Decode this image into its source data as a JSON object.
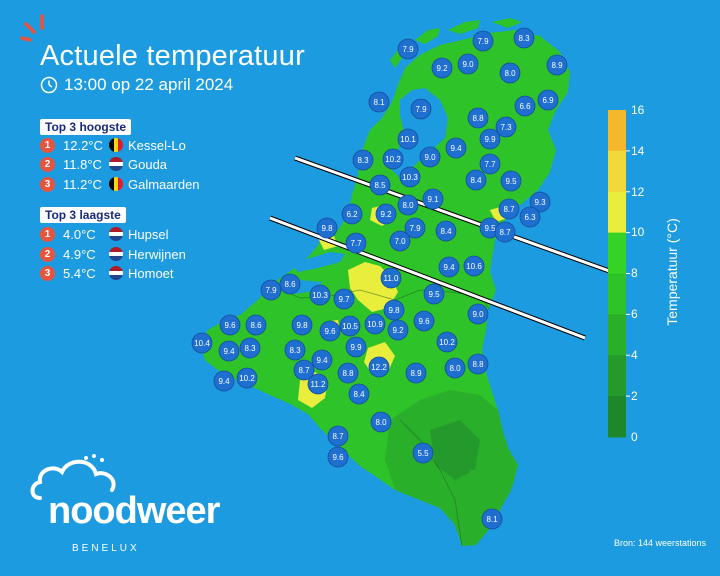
{
  "header": {
    "title": "Actuele temperatuur",
    "datetime": "13:00 op 22 april 2024"
  },
  "top_highest": {
    "heading": "Top 3 hoogste",
    "items": [
      {
        "rank": "1",
        "temp": "12.2°C",
        "country": "BE",
        "place": "Kessel-Lo"
      },
      {
        "rank": "2",
        "temp": "11.8°C",
        "country": "NL",
        "place": "Gouda"
      },
      {
        "rank": "3",
        "temp": "11.2°C",
        "country": "BE",
        "place": "Galmaarden"
      }
    ]
  },
  "top_lowest": {
    "heading": "Top 3 laagste",
    "items": [
      {
        "rank": "1",
        "temp": "4.0°C",
        "country": "NL",
        "place": "Hupsel"
      },
      {
        "rank": "2",
        "temp": "4.9°C",
        "country": "NL",
        "place": "Herwijnen"
      },
      {
        "rank": "3",
        "temp": "5.4°C",
        "country": "NL",
        "place": "Homoet"
      }
    ]
  },
  "legend": {
    "title": "Temperatuur (°C)",
    "ticks": [
      "16",
      "14",
      "12",
      "10",
      "8",
      "6",
      "4",
      "2",
      "0"
    ],
    "colors": [
      "#f4b82c",
      "#f1d93a",
      "#e9ee3d",
      "#34d326",
      "#2fc32a",
      "#2aaf2b",
      "#249a2c",
      "#1f872b"
    ]
  },
  "stations": [
    "7.9",
    "7.9",
    "8.3",
    "9.2",
    "9.0",
    "8.0",
    "8.9",
    "8.1",
    "6.6",
    "6.9",
    "7.9",
    "10.1",
    "8.8",
    "7.3",
    "9.9",
    "8.3",
    "10.2",
    "9.0",
    "9.4",
    "7.7",
    "10.3",
    "8.4",
    "9.5",
    "8.5",
    "9.1",
    "8.0",
    "9.3",
    "8.7",
    "6.3",
    "6.2",
    "9.2",
    "9.8",
    "7.9",
    "8.4",
    "9.5",
    "8.7",
    "7.0",
    "9.4",
    "10.6",
    "7.7",
    "11.0",
    "7.9",
    "9.5",
    "8.6",
    "10.3",
    "9.7",
    "9.8",
    "9.0",
    "9.6",
    "8.6",
    "9.8",
    "9.6",
    "10.5",
    "10.9",
    "9.2",
    "9.6",
    "10.4",
    "9.4",
    "8.3",
    "8.3",
    "9.9",
    "10.2",
    "9.4",
    "8.7",
    "8.8",
    "12.2",
    "8.9",
    "8.0",
    "8.8",
    "9.4",
    "10.2",
    "11.2",
    "8.4",
    "8.0",
    "8.7",
    "9.6",
    "5.5",
    "8.1"
  ],
  "source": "Bron: 144 weerstations",
  "brand": {
    "name": "noodweer",
    "sub": "BENELUX"
  }
}
